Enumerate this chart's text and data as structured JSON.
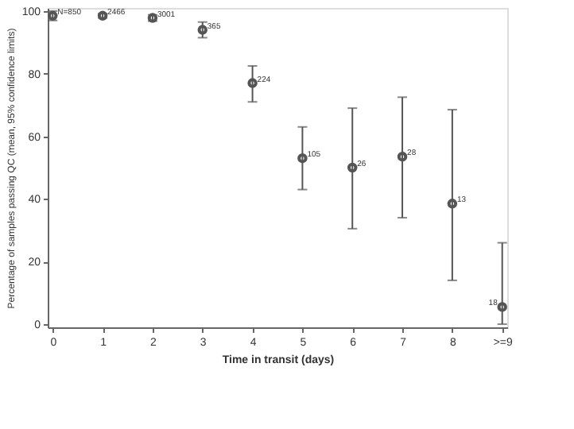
{
  "chart_data": {
    "type": "scatter",
    "xlabel": "Time in transit (days)",
    "ylabel": "Percentage of samples passing QC (mean, 95% confidence limits)",
    "x": [
      0,
      1,
      2,
      3,
      4,
      5,
      6,
      7,
      8,
      9
    ],
    "values": [
      98.5,
      98.5,
      97.8,
      94,
      77,
      53,
      50,
      53.5,
      38.5,
      5.5
    ],
    "errors": [
      [
        97,
        100
      ],
      [
        97.8,
        99.2
      ],
      [
        96.8,
        98.8
      ],
      [
        91.5,
        96.5
      ],
      [
        71,
        82.5
      ],
      [
        43,
        63
      ],
      [
        30.5,
        69
      ],
      [
        34,
        72.5
      ],
      [
        14,
        68.5
      ],
      [
        0,
        26
      ]
    ],
    "color": "#555555",
    "marker": "circle",
    "grid": false,
    "xlim": [
      -0.1,
      9.1
    ],
    "xticks": [
      0,
      1,
      2,
      3,
      4,
      5,
      6,
      7,
      8,
      {
        "value": 9,
        "label": ">=9"
      }
    ],
    "ylim": [
      -1,
      101
    ],
    "yticks": [
      0,
      20,
      40,
      60,
      80,
      100
    ],
    "annotations": [
      {
        "text": "N=850",
        "x": 0,
        "y": 98.5
      },
      {
        "text": "2466",
        "x": 1,
        "y": 98.5
      },
      {
        "text": "3001",
        "x": 2,
        "y": 97.8
      },
      {
        "text": "365",
        "x": 3,
        "y": 94
      },
      {
        "text": "224",
        "x": 4,
        "y": 77
      },
      {
        "text": "105",
        "x": 5,
        "y": 53
      },
      {
        "text": "26",
        "x": 6,
        "y": 50
      },
      {
        "text": "28",
        "x": 7,
        "y": 53.5
      },
      {
        "text": "13",
        "x": 8,
        "y": 38.5
      },
      {
        "text": "18",
        "x": 9,
        "y": 5.5
      }
    ]
  }
}
